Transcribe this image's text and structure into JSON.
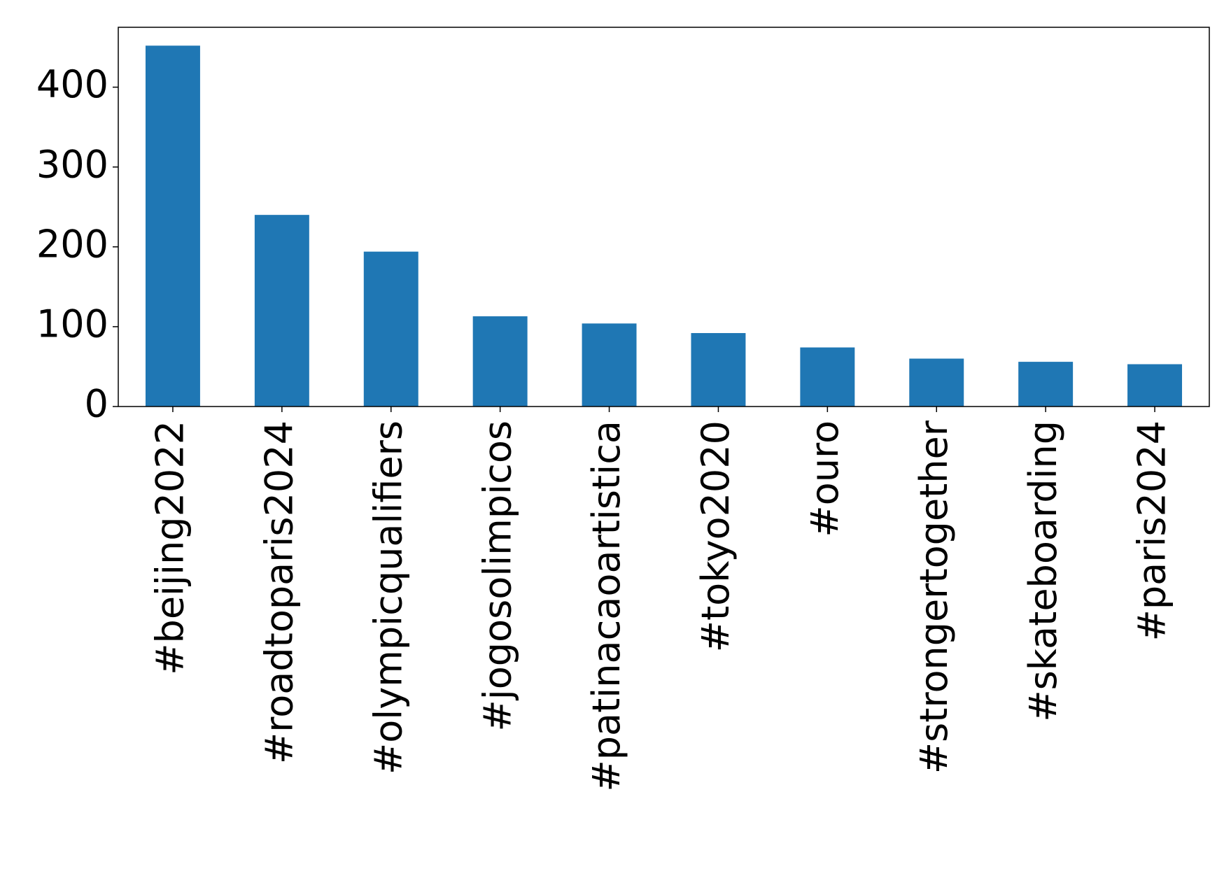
{
  "chart_data": {
    "type": "bar",
    "categories": [
      "#beijing2022",
      "#roadtoparis2024",
      "#olympicqualifiers",
      "#jogosolimpicos",
      "#patinacaoartistica",
      "#tokyo2020",
      "#ouro",
      "#strongertogether",
      "#skateboarding",
      "#paris2024"
    ],
    "values": [
      452,
      240,
      194,
      113,
      104,
      92,
      74,
      60,
      56,
      53
    ],
    "color": "#1f77b4",
    "ylim": [
      0,
      475
    ],
    "yticks": [
      0,
      100,
      200,
      300,
      400
    ],
    "grid": false
  }
}
